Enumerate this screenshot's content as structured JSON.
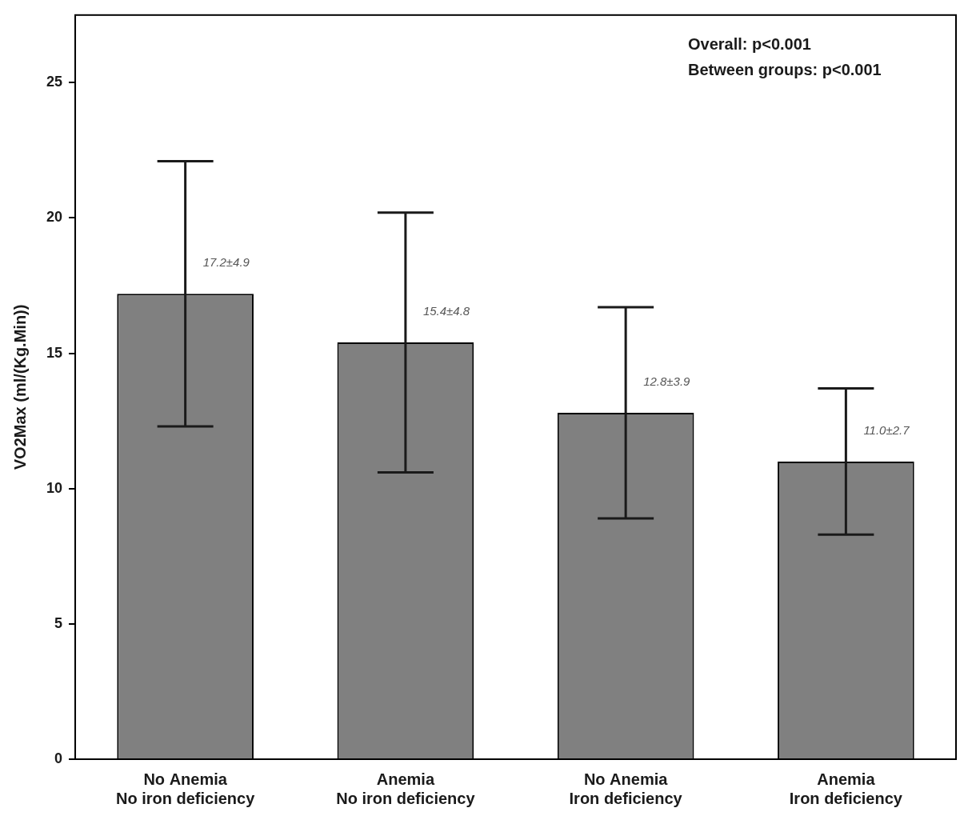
{
  "chart_data": {
    "type": "bar",
    "y_label": "VO2Max (ml/(Kg.Min))",
    "categories": [
      [
        "No Anemia",
        "No iron deficiency"
      ],
      [
        "Anemia",
        "No iron deficiency"
      ],
      [
        "No Anemia",
        "Iron deficiency"
      ],
      [
        "Anemia",
        "Iron deficiency"
      ]
    ],
    "values": [
      17.2,
      15.4,
      12.8,
      11.0
    ],
    "errors": [
      4.9,
      4.8,
      3.9,
      2.7
    ],
    "value_labels": [
      "17.2±4.9",
      "15.4±4.8",
      "12.8±3.9",
      "11.0±2.7"
    ],
    "data_labels": true,
    "color": "#808080",
    "ylim": [
      0,
      27.5
    ],
    "yticks": [
      0,
      5,
      10,
      15,
      20,
      25
    ],
    "grid": false,
    "annotations": [
      "Overall: p<0.001",
      "Between groups: p<0.001"
    ]
  }
}
